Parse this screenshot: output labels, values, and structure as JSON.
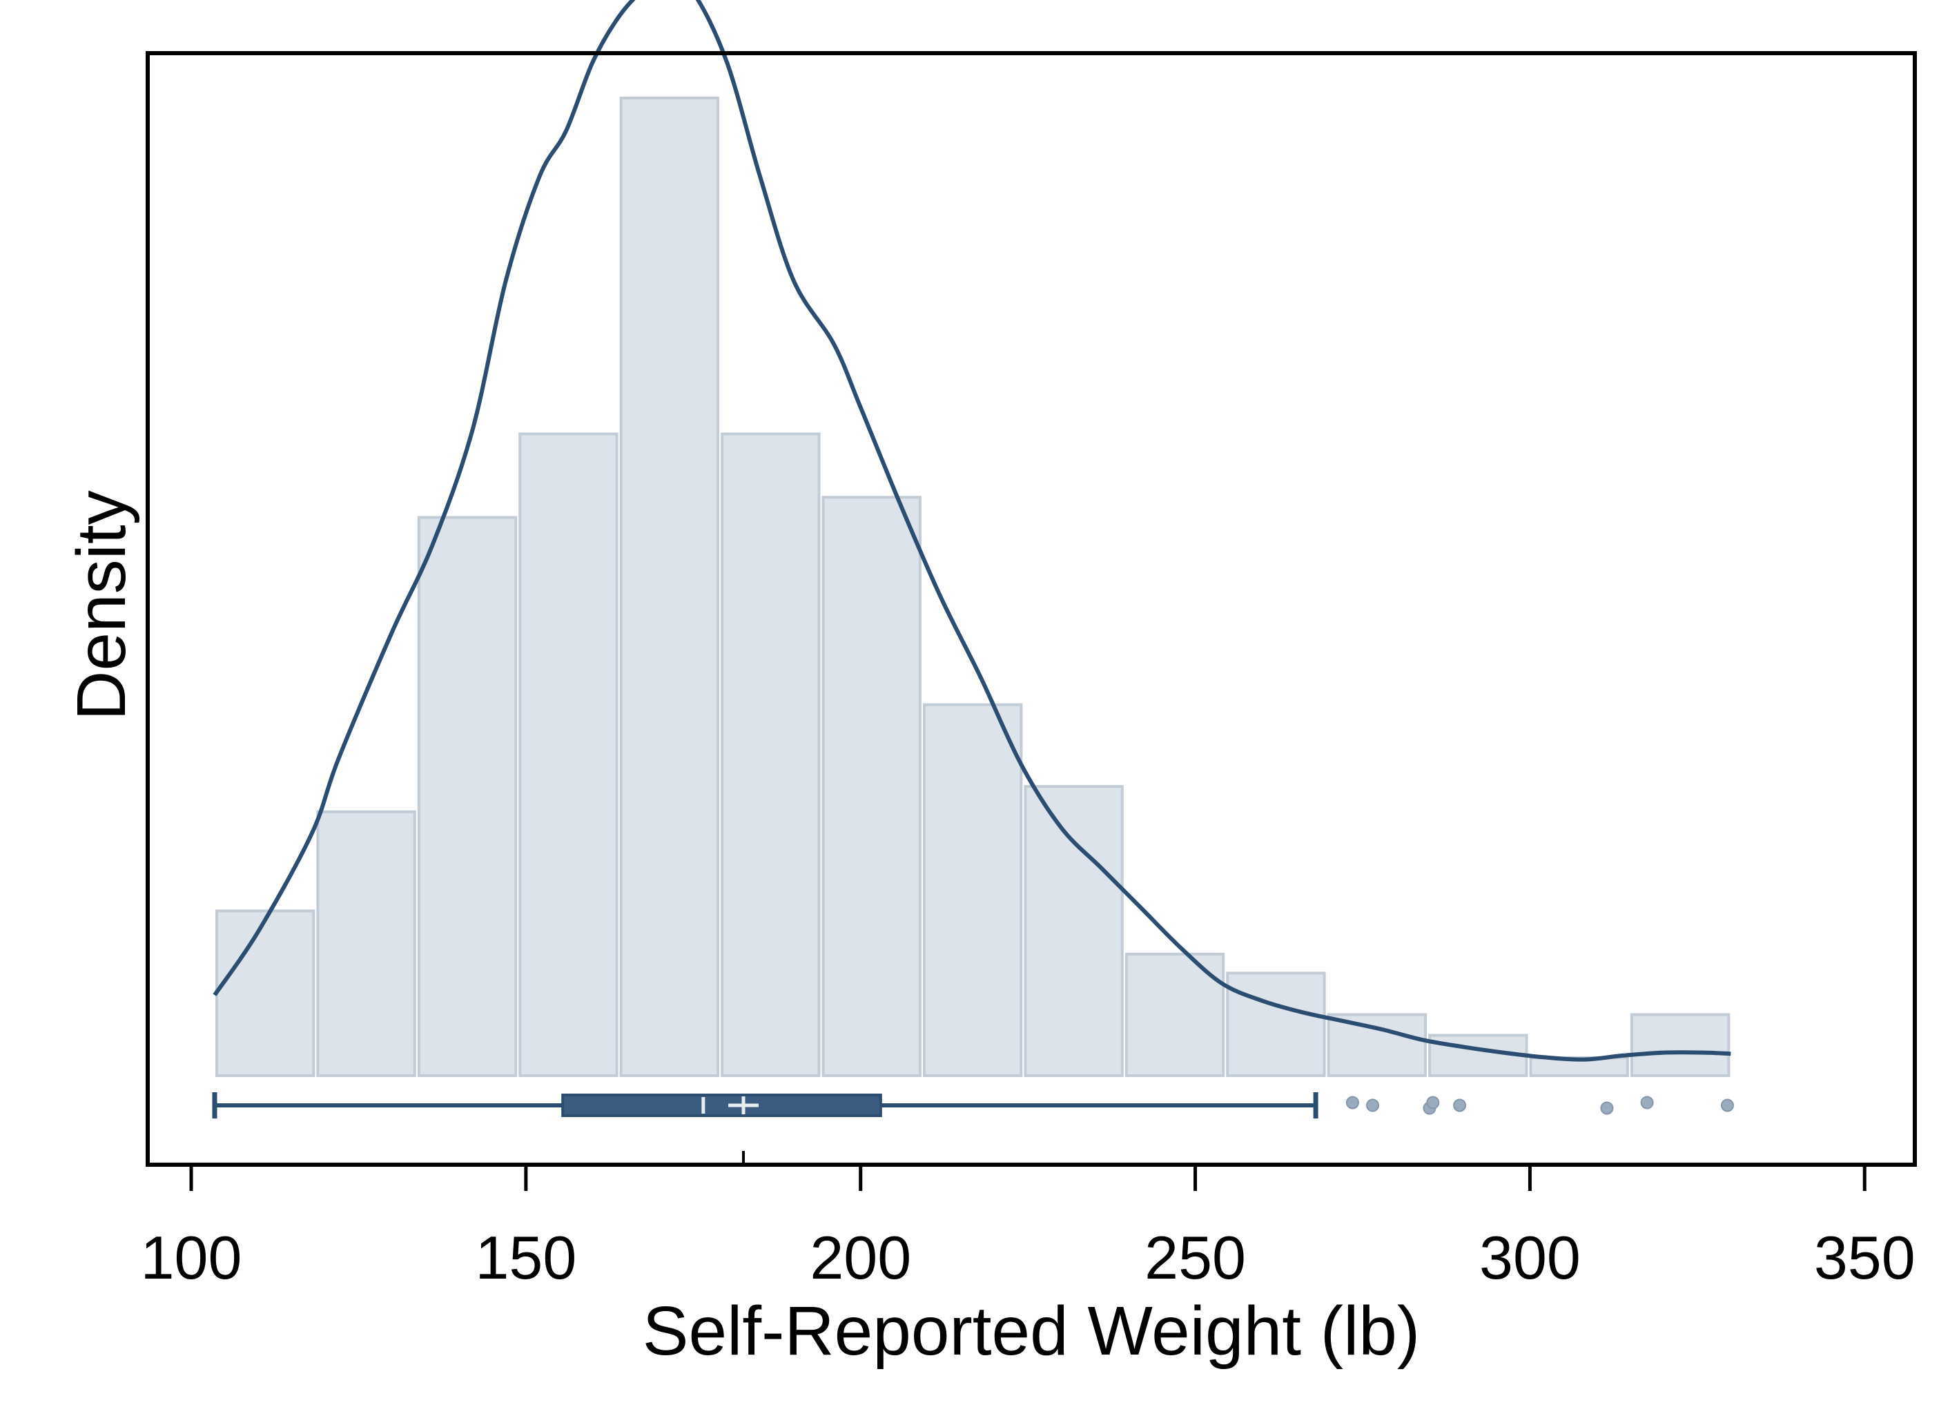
{
  "chart_data": {
    "type": "histogram",
    "title": "",
    "xlabel": "Self-Reported Weight (lb)",
    "ylabel": "Density",
    "xlim": [
      93.5,
      357.5
    ],
    "x_ticks": [
      100,
      150,
      200,
      250,
      300,
      350
    ],
    "x_tick_labels": [
      "100",
      "150",
      "200",
      "250",
      "300",
      "350"
    ],
    "y_ticks_shown": false,
    "grid": false,
    "legend": "none",
    "histogram": {
      "bin_edges": [
        103.5,
        118.6,
        133.7,
        148.8,
        163.9,
        179.0,
        194.1,
        209.2,
        224.3,
        239.4,
        254.5,
        269.6,
        284.7,
        299.8,
        314.9,
        330.0
      ],
      "densities": [
        0.00286,
        0.00458,
        0.00969,
        0.01114,
        0.01697,
        0.01114,
        0.01004,
        0.00644,
        0.00502,
        0.00211,
        0.00178,
        0.00106,
        0.0007,
        0.00031,
        0.00106
      ],
      "fill_color": "#dce3ea",
      "edge_color": "#c2ccd6"
    },
    "density_curve": {
      "x": [
        103.5,
        110,
        118,
        122,
        130,
        136,
        142,
        147,
        152,
        156,
        160,
        164,
        168,
        171,
        175,
        180,
        185,
        190,
        196,
        200,
        206,
        212,
        218,
        224,
        230,
        236,
        242,
        248,
        254,
        260,
        266,
        272,
        278,
        284,
        290,
        296,
        302,
        308,
        314,
        320,
        326,
        330
      ],
      "y": [
        0.0014,
        0.0025,
        0.0042,
        0.0055,
        0.0077,
        0.0092,
        0.0112,
        0.0138,
        0.0156,
        0.0164,
        0.0176,
        0.0184,
        0.0189,
        0.0191,
        0.0188,
        0.0176,
        0.0156,
        0.0138,
        0.0127,
        0.0116,
        0.0099,
        0.0083,
        0.0069,
        0.0054,
        0.0043,
        0.0036,
        0.0029,
        0.0022,
        0.0016,
        0.0013,
        0.0011,
        0.00095,
        0.0008,
        0.00062,
        0.0005,
        0.0004,
        0.00032,
        0.00028,
        0.00035,
        0.0004,
        0.0004,
        0.00038
      ],
      "color": "#2b4d71"
    },
    "boxplot": {
      "whisker_low": 103.5,
      "q1": 155.5,
      "median": 176.5,
      "mean": 182.5,
      "q3": 203,
      "whisker_high": 268,
      "outliers": [
        273.5,
        276.5,
        285,
        285.5,
        289.5,
        311.5,
        317.5,
        329.5
      ],
      "box_color": "#3b5b80",
      "line_color": "#2b4d71",
      "marker_color": "#e8edf2",
      "outlier_color": "#9aabbd"
    }
  }
}
